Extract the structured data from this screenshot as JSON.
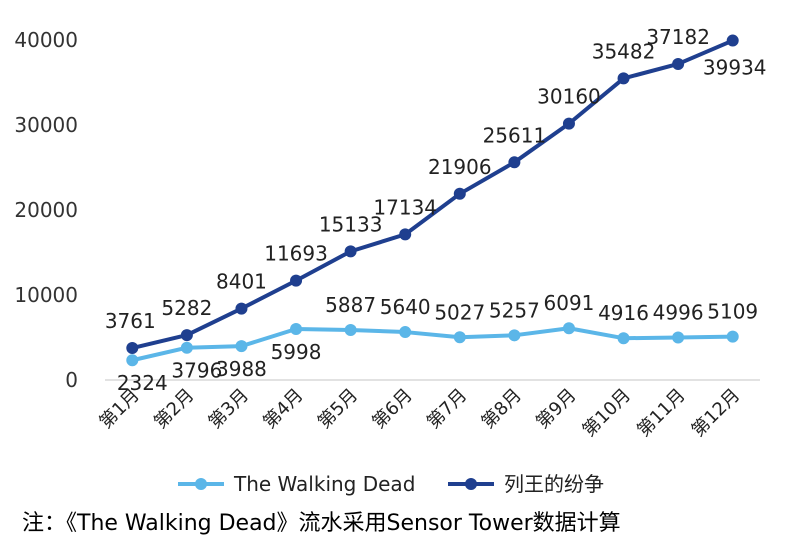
{
  "chart_data": {
    "type": "line",
    "title": "",
    "xlabel": "",
    "ylabel": "",
    "ylim": [
      0,
      40000
    ],
    "yticks": [
      0,
      10000,
      20000,
      30000,
      40000
    ],
    "grid": false,
    "legend_position": "bottom",
    "categories": [
      "第1月",
      "第2月",
      "第3月",
      "第4月",
      "第5月",
      "第6月",
      "第7月",
      "第8月",
      "第9月",
      "第10月",
      "第11月",
      "第12月"
    ],
    "series": [
      {
        "name": "The Walking Dead",
        "color": "#5bb6e8",
        "values": [
          2324,
          3796,
          3988,
          5998,
          5887,
          5640,
          5027,
          5257,
          6091,
          4916,
          4996,
          5109
        ]
      },
      {
        "name": "列王的纷争",
        "color": "#1f3f8f",
        "values": [
          3761,
          5282,
          8401,
          11693,
          15133,
          17134,
          21906,
          25611,
          30160,
          35482,
          37182,
          39934
        ]
      }
    ]
  },
  "note": "注：《The Walking Dead》流水采用Sensor Tower数据计算"
}
